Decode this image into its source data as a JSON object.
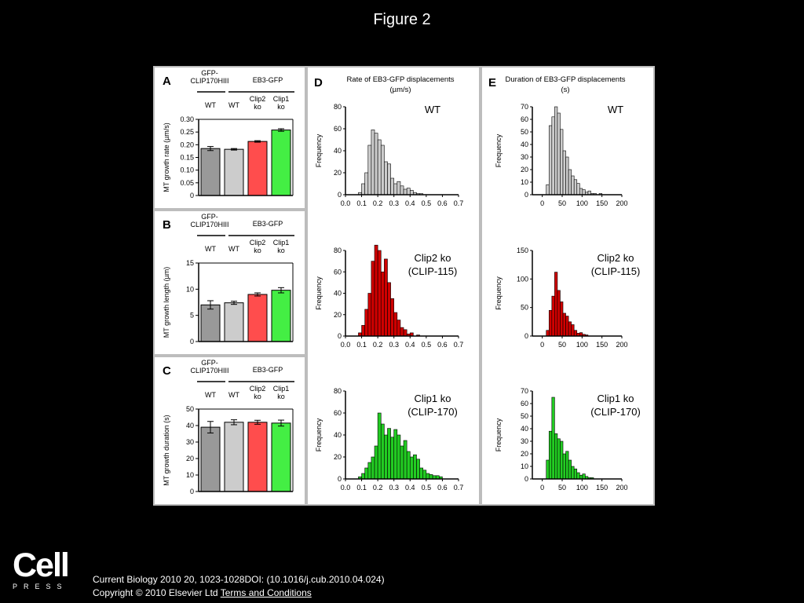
{
  "figure_title": "Figure 2",
  "footer": {
    "citation": "Current Biology 2010 20, 1023-1028DOI: (10.1016/j.cub.2010.04.024)",
    "copyright": "Copyright © 2010 Elsevier Ltd",
    "terms_link": "Terms and Conditions"
  },
  "logo": {
    "main": "Cell",
    "sub": "PRESS"
  },
  "colors": {
    "gray_dark": "#999999",
    "gray_light": "#cccccc",
    "red": "#ff4d4d",
    "green": "#44ee44",
    "hist_red": "#d00000",
    "hist_green": "#22cc22",
    "hist_gray": "#cccccc"
  },
  "chart_data": [
    {
      "id": "A",
      "type": "bar",
      "panel_label": "A",
      "header": {
        "group1": "GFP-\nCLIP170HIII",
        "group2": "EB3-GFP"
      },
      "categories": [
        "WT",
        "WT",
        "Clip2\nko",
        "Clip1\nko"
      ],
      "values": [
        0.185,
        0.182,
        0.213,
        0.258
      ],
      "errors": [
        0.008,
        0.003,
        0.003,
        0.005
      ],
      "ylabel": "MT growth rate (µm/s)",
      "ylim": [
        0,
        0.3
      ],
      "yticks": [
        "0",
        "0.05",
        "0.10",
        "0.15",
        "0.20",
        "0.25",
        "0.30"
      ]
    },
    {
      "id": "B",
      "type": "bar",
      "panel_label": "B",
      "header": {
        "group1": "GFP-\nCLIP170HIII",
        "group2": "EB3-GFP"
      },
      "categories": [
        "WT",
        "WT",
        "Clip2\nko",
        "Clip1\nko"
      ],
      "values": [
        7.0,
        7.4,
        9.0,
        9.8
      ],
      "errors": [
        0.8,
        0.3,
        0.3,
        0.5
      ],
      "ylabel": "MT growth length (µm)",
      "ylim": [
        0,
        15
      ],
      "yticks": [
        "0",
        "5",
        "10",
        "15"
      ]
    },
    {
      "id": "C",
      "type": "bar",
      "panel_label": "C",
      "header": {
        "group1": "GFP-\nCLIP170HIII",
        "group2": "EB3-GFP"
      },
      "categories": [
        "WT",
        "WT",
        "Clip2\nko",
        "Clip1\nko"
      ],
      "values": [
        39,
        42,
        42,
        41.5
      ],
      "errors": [
        3.5,
        1.5,
        1.2,
        1.8
      ],
      "ylabel": "MT growth duration (s)",
      "ylim": [
        0,
        50
      ],
      "yticks": [
        "0",
        "10",
        "20",
        "30",
        "40",
        "50"
      ]
    },
    {
      "id": "D",
      "type": "histogram",
      "panel_label": "D",
      "title": "Rate of EB3-GFP displacements\n(µm/s)",
      "ylabel": "Frequency",
      "xlim": [
        0,
        0.7
      ],
      "xticks": [
        "0.0",
        "0.1",
        "0.2",
        "0.3",
        "0.4",
        "0.5",
        "0.6",
        "0.7"
      ],
      "bin_start": 0.08,
      "bin_width": 0.02,
      "plots": [
        {
          "label": "WT",
          "ylim": [
            0,
            80
          ],
          "yticks": [
            "0",
            "20",
            "40",
            "60",
            "80"
          ],
          "color": "#cccccc",
          "counts": [
            2,
            10,
            20,
            45,
            59,
            56,
            50,
            45,
            30,
            28,
            15,
            10,
            12,
            8,
            5,
            6,
            4,
            2,
            1,
            1
          ]
        },
        {
          "label": "Clip2 ko\n(CLIP-115)",
          "ylim": [
            0,
            80
          ],
          "yticks": [
            "0",
            "20",
            "40",
            "60",
            "80"
          ],
          "color": "#d00000",
          "counts": [
            3,
            10,
            25,
            40,
            70,
            85,
            80,
            60,
            72,
            50,
            35,
            22,
            15,
            8,
            6,
            2,
            3,
            0,
            1,
            0
          ]
        },
        {
          "label": "Clip1 ko\n(CLIP-170)",
          "ylim": [
            0,
            80
          ],
          "yticks": [
            "0",
            "20",
            "40",
            "60",
            "80"
          ],
          "color": "#22cc22",
          "counts": [
            2,
            5,
            10,
            15,
            20,
            30,
            60,
            50,
            40,
            46,
            38,
            45,
            40,
            30,
            35,
            25,
            20,
            22,
            18,
            10,
            8,
            5,
            4,
            3,
            3,
            2
          ]
        }
      ]
    },
    {
      "id": "E",
      "type": "histogram",
      "panel_label": "E",
      "title": "Duration of EB3-GFP displacements\n(s)",
      "ylabel": "Frequency",
      "xlim": [
        -25,
        200
      ],
      "xticks": [
        "0",
        "50",
        "100",
        "150",
        "200"
      ],
      "bin_start": 10,
      "bin_width": 7,
      "plots": [
        {
          "label": "WT",
          "ylim": [
            0,
            70
          ],
          "yticks": [
            "0",
            "10",
            "20",
            "30",
            "40",
            "50",
            "60",
            "70"
          ],
          "color": "#cccccc",
          "counts": [
            8,
            55,
            62,
            70,
            65,
            52,
            35,
            30,
            20,
            15,
            12,
            9,
            5,
            4,
            2,
            3,
            1,
            1,
            0,
            1
          ]
        },
        {
          "label": "Clip2 ko\n(CLIP-115)",
          "ylim": [
            0,
            150
          ],
          "yticks": [
            "0",
            "50",
            "100",
            "150"
          ],
          "color": "#d00000",
          "counts": [
            10,
            45,
            70,
            112,
            80,
            60,
            40,
            35,
            25,
            20,
            10,
            5,
            6,
            3,
            2
          ]
        },
        {
          "label": "Clip1 ko\n(CLIP-170)",
          "ylim": [
            0,
            70
          ],
          "yticks": [
            "0",
            "10",
            "20",
            "30",
            "40",
            "50",
            "60",
            "70"
          ],
          "color": "#22cc22",
          "counts": [
            15,
            38,
            65,
            36,
            32,
            30,
            20,
            22,
            15,
            10,
            8,
            5,
            3,
            4,
            2,
            1,
            1
          ]
        }
      ]
    }
  ]
}
